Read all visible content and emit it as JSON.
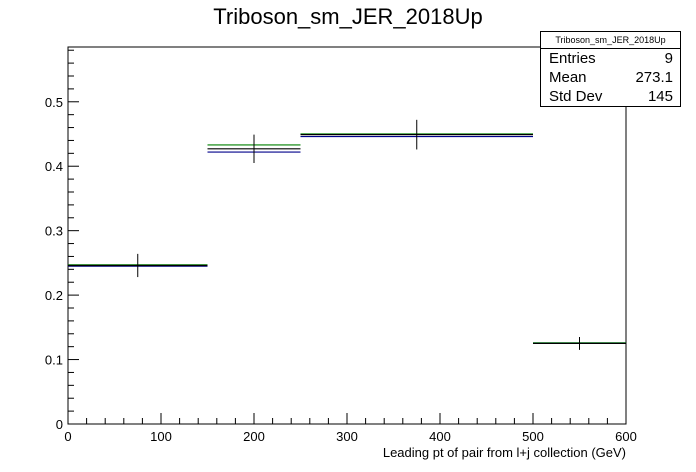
{
  "chart_data": {
    "type": "histogram",
    "title": "Triboson_sm_JER_2018Up",
    "xlabel": "Leading pt of pair from l+j collection (GeV)",
    "ylabel": "",
    "xlim": [
      0,
      600
    ],
    "ylim": [
      0,
      0.585
    ],
    "x_ticks": [
      0,
      100,
      200,
      300,
      400,
      500,
      600
    ],
    "y_ticks": [
      0,
      0.1,
      0.2,
      0.3,
      0.4,
      0.5
    ],
    "bins": [
      {
        "low": 0,
        "high": 150,
        "center": 75
      },
      {
        "low": 150,
        "high": 250,
        "center": 200
      },
      {
        "low": 250,
        "high": 500,
        "center": 375
      },
      {
        "low": 500,
        "high": 600,
        "center": 550
      }
    ],
    "series": [
      {
        "color": "#000000",
        "values": [
          0.246,
          0.427,
          0.449,
          0.125
        ],
        "errors": [
          0.018,
          0.022,
          0.023,
          0.01
        ],
        "with_errors": true
      },
      {
        "color": "#00008b",
        "values": [
          0.245,
          0.422,
          0.446,
          0.125
        ]
      },
      {
        "color": "#008000",
        "values": [
          0.247,
          0.433,
          0.45,
          0.126
        ]
      }
    ],
    "legend": "top-right"
  },
  "stats": {
    "title": "Triboson_sm_JER_2018Up",
    "rows": [
      {
        "label": "Entries",
        "value": "9"
      },
      {
        "label": "Mean",
        "value": "273.1"
      },
      {
        "label": "Std Dev",
        "value": "145"
      }
    ]
  }
}
